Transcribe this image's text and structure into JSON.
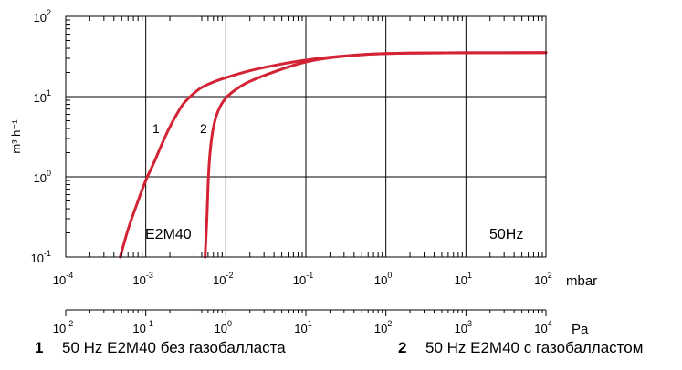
{
  "chart_data": {
    "type": "line",
    "x_scale": "log",
    "y_scale": "log",
    "xlim": [
      0.0001,
      100
    ],
    "ylim": [
      0.1,
      100
    ],
    "grid": true,
    "ylabel": "m³ h⁻¹",
    "xlabel_primary": "mbar",
    "xlabel_secondary": "Pa",
    "x_ticks_primary": [
      {
        "base": "10",
        "exp": "-4"
      },
      {
        "base": "10",
        "exp": "-3"
      },
      {
        "base": "10",
        "exp": "-2"
      },
      {
        "base": "10",
        "exp": "-1"
      },
      {
        "base": "10",
        "exp": "0"
      },
      {
        "base": "10",
        "exp": "1"
      },
      {
        "base": "10",
        "exp": "2"
      }
    ],
    "x_ticks_secondary": [
      {
        "base": "10",
        "exp": "-2"
      },
      {
        "base": "10",
        "exp": "-1"
      },
      {
        "base": "10",
        "exp": "0"
      },
      {
        "base": "10",
        "exp": "1"
      },
      {
        "base": "10",
        "exp": "2"
      },
      {
        "base": "10",
        "exp": "3"
      },
      {
        "base": "10",
        "exp": "4"
      }
    ],
    "y_ticks": [
      {
        "base": "10",
        "exp": "-1"
      },
      {
        "base": "10",
        "exp": "0"
      },
      {
        "base": "10",
        "exp": "1"
      },
      {
        "base": "10",
        "exp": "2"
      }
    ],
    "annotations": {
      "model": "E2M40",
      "frequency": "50Hz"
    },
    "series": [
      {
        "label": "1",
        "color": "#d42335",
        "points": [
          [
            0.00048,
            0.1
          ],
          [
            0.0006,
            0.22
          ],
          [
            0.0008,
            0.5
          ],
          [
            0.001,
            0.9
          ],
          [
            0.0013,
            1.6
          ],
          [
            0.0016,
            2.6
          ],
          [
            0.002,
            4.2
          ],
          [
            0.0025,
            6.3
          ],
          [
            0.003,
            8.3
          ],
          [
            0.004,
            11.0
          ],
          [
            0.005,
            13.0
          ],
          [
            0.007,
            15.2
          ],
          [
            0.01,
            17.2
          ],
          [
            0.02,
            21.0
          ],
          [
            0.05,
            25.5
          ],
          [
            0.1,
            28.5
          ],
          [
            0.2,
            31.0
          ],
          [
            0.5,
            33.3
          ],
          [
            1,
            34.4
          ],
          [
            2,
            34.9
          ],
          [
            10,
            35.2
          ],
          [
            100,
            35.3
          ]
        ]
      },
      {
        "label": "2",
        "color": "#d42335",
        "points": [
          [
            0.0055,
            0.1
          ],
          [
            0.0058,
            0.3
          ],
          [
            0.006,
            0.8
          ],
          [
            0.0063,
            1.8
          ],
          [
            0.0068,
            3.5
          ],
          [
            0.0075,
            5.5
          ],
          [
            0.0085,
            7.5
          ],
          [
            0.01,
            9.6
          ],
          [
            0.013,
            12.0
          ],
          [
            0.02,
            15.5
          ],
          [
            0.05,
            22.0
          ],
          [
            0.1,
            27.0
          ],
          [
            0.2,
            30.5
          ],
          [
            0.5,
            33.3
          ],
          [
            1,
            34.4
          ],
          [
            2,
            34.9
          ],
          [
            10,
            35.2
          ],
          [
            100,
            35.3
          ]
        ]
      }
    ]
  },
  "legend": [
    {
      "num": "1",
      "text": "50 Hz E2M40 без газобалласта"
    },
    {
      "num": "2",
      "text": "50 Hz E2M40 с газобалластом"
    }
  ]
}
